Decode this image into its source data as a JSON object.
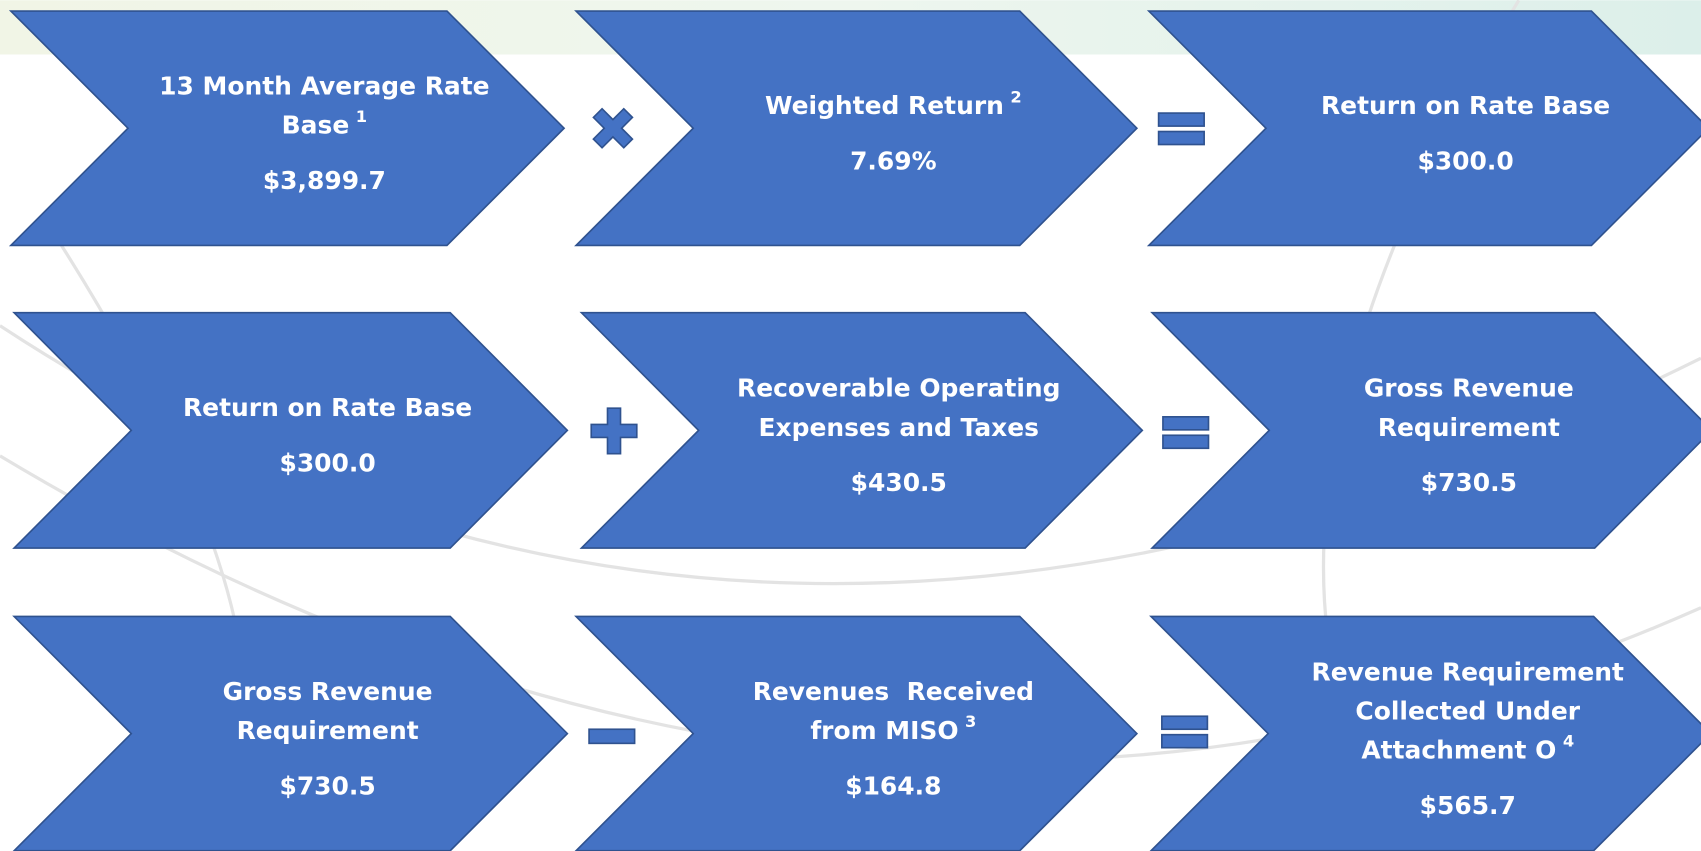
{
  "rows": [
    {
      "items": [
        {
          "label": [
            "13 Month Average Rate",
            "Base"
          ],
          "sup": "1",
          "value": "$3,899.7"
        },
        {
          "label": [
            "Weighted Return"
          ],
          "sup": "2",
          "value": "7.69%"
        },
        {
          "label": [
            "Return on Rate Base"
          ],
          "value": "$300.0"
        }
      ]
    },
    {
      "items": [
        {
          "label": [
            "Return on Rate Base"
          ],
          "value": "$300.0"
        },
        {
          "label": [
            "Recoverable Operating",
            "Expenses and Taxes"
          ],
          "value": "$430.5"
        },
        {
          "label": [
            "Gross Revenue",
            "Requirement"
          ],
          "value": "$730.5"
        }
      ]
    },
    {
      "items": [
        {
          "label": [
            "Gross Revenue",
            "Requirement"
          ],
          "value": "$730.5"
        },
        {
          "label": [
            "Revenues  Received",
            "from MISO"
          ],
          "sup": "3",
          "value": "$164.8"
        },
        {
          "label": [
            "Revenue Requirement",
            "Collected Under",
            "Attachment O"
          ],
          "sup": "4",
          "value": "$565.7"
        }
      ]
    }
  ]
}
